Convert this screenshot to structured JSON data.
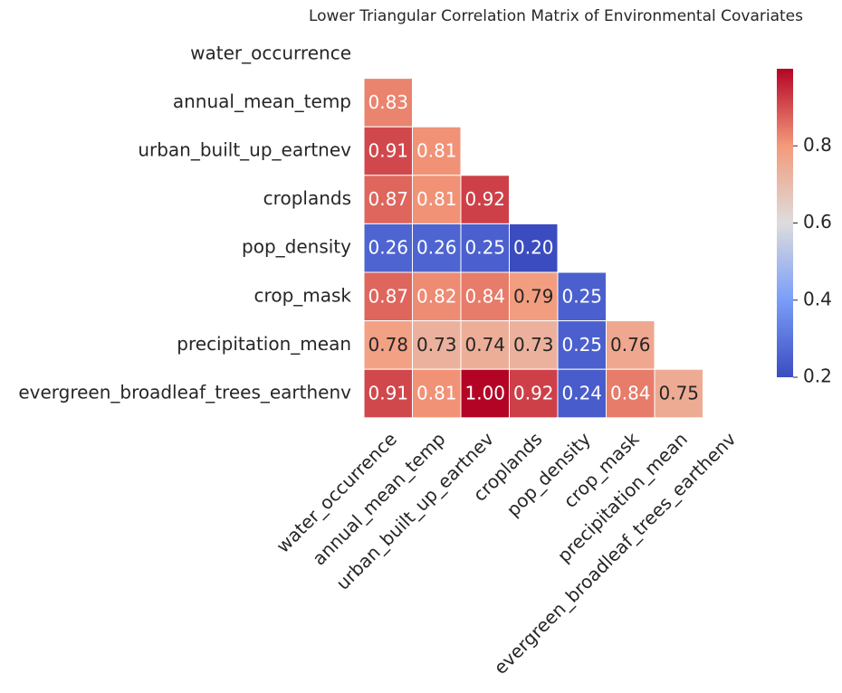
{
  "chart_data": {
    "type": "heatmap",
    "title": "Lower Triangular Correlation Matrix of Environmental Covariates",
    "rows": [
      "water_occurrence",
      "annual_mean_temp",
      "urban_built_up_eartnev",
      "croplands",
      "pop_density",
      "crop_mask",
      "precipitation_mean",
      "evergreen_broadleaf_trees_earthenv"
    ],
    "columns": [
      "water_occurrence",
      "annual_mean_temp",
      "urban_built_up_eartnev",
      "croplands",
      "pop_density",
      "crop_mask",
      "precipitation_mean",
      "evergreen_broadleaf_trees_earthenv"
    ],
    "values": [
      [
        null,
        null,
        null,
        null,
        null,
        null,
        null,
        null
      ],
      [
        0.83,
        null,
        null,
        null,
        null,
        null,
        null,
        null
      ],
      [
        0.91,
        0.81,
        null,
        null,
        null,
        null,
        null,
        null
      ],
      [
        0.87,
        0.81,
        0.92,
        null,
        null,
        null,
        null,
        null
      ],
      [
        0.26,
        0.26,
        0.25,
        0.2,
        null,
        null,
        null,
        null
      ],
      [
        0.87,
        0.82,
        0.84,
        0.79,
        0.25,
        null,
        null,
        null
      ],
      [
        0.78,
        0.73,
        0.74,
        0.73,
        0.25,
        0.76,
        null,
        null
      ],
      [
        0.91,
        0.81,
        1,
        0.92,
        0.24,
        0.84,
        0.75,
        null
      ]
    ],
    "value_labels": [
      [
        null,
        null,
        null,
        null,
        null,
        null,
        null,
        null
      ],
      [
        "0.83",
        null,
        null,
        null,
        null,
        null,
        null,
        null
      ],
      [
        "0.91",
        "0.81",
        null,
        null,
        null,
        null,
        null,
        null
      ],
      [
        "0.87",
        "0.81",
        "0.92",
        null,
        null,
        null,
        null,
        null
      ],
      [
        "0.26",
        "0.26",
        "0.25",
        "0.20",
        null,
        null,
        null,
        null
      ],
      [
        "0.87",
        "0.82",
        "0.84",
        "0.79",
        "0.25",
        null,
        null,
        null
      ],
      [
        "0.78",
        "0.73",
        "0.74",
        "0.73",
        "0.25",
        "0.76",
        null,
        null
      ],
      [
        "0.91",
        "0.81",
        "1.00",
        "0.92",
        "0.24",
        "0.84",
        "0.75",
        null
      ]
    ],
    "clim": [
      0.2,
      1.0
    ],
    "cticks": [
      0.2,
      0.4,
      0.6,
      0.8
    ],
    "colormap": [
      "#3b4cc0",
      "#7a9df8",
      "#dddddd",
      "#f49a7b",
      "#b40426"
    ]
  }
}
